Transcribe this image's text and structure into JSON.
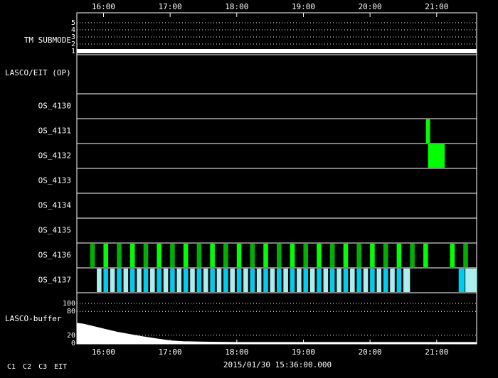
{
  "chart_data": {
    "type": "timeline",
    "xlim": [
      15.6,
      21.6
    ],
    "xticks": [
      {
        "value": 16,
        "label": "16:00"
      },
      {
        "value": 17,
        "label": "17:00"
      },
      {
        "value": 18,
        "label": "18:00"
      },
      {
        "value": 19,
        "label": "19:00"
      },
      {
        "value": 20,
        "label": "20:00"
      },
      {
        "value": 21,
        "label": "21:00"
      }
    ],
    "submode": {
      "label": "TM SUBMODE",
      "ylim": [
        0.5,
        5.5
      ],
      "yticks": [
        1,
        2,
        3,
        4,
        5
      ],
      "x": [
        15.6,
        21.6
      ],
      "values": [
        1,
        1
      ],
      "color": "#ffffff"
    },
    "ops_label": "LASCO/EIT (OP)",
    "rows": [
      {
        "label": "OS_4130"
      },
      {
        "label": "OS_4131",
        "series": [
          {
            "color": "#00ff00",
            "intervals": [
              [
                20.84,
                20.9
              ]
            ]
          }
        ]
      },
      {
        "label": "OS_4132",
        "series": [
          {
            "color": "#00ff00",
            "intervals": [
              [
                20.87,
                21.12
              ]
            ]
          }
        ]
      },
      {
        "label": "OS_4133"
      },
      {
        "label": "OS_4134"
      },
      {
        "label": "OS_4135"
      },
      {
        "label": "OS_4136",
        "series": [
          {
            "color": "#00b000",
            "intervals": [
              [
                15.8,
                15.87
              ],
              [
                16.2,
                16.27
              ],
              [
                16.6,
                16.67
              ],
              [
                17.0,
                17.07
              ],
              [
                17.4,
                17.47
              ],
              [
                17.8,
                17.87
              ],
              [
                18.2,
                18.27
              ],
              [
                18.6,
                18.67
              ],
              [
                19.0,
                19.07
              ],
              [
                19.4,
                19.47
              ],
              [
                19.8,
                19.87
              ],
              [
                20.2,
                20.27
              ],
              [
                20.6,
                20.67
              ],
              [
                21.4,
                21.47
              ]
            ]
          },
          {
            "color": "#00ff00",
            "intervals": [
              [
                16.0,
                16.07
              ],
              [
                16.4,
                16.47
              ],
              [
                16.8,
                16.87
              ],
              [
                17.2,
                17.27
              ],
              [
                17.6,
                17.67
              ],
              [
                18.0,
                18.07
              ],
              [
                18.4,
                18.47
              ],
              [
                18.8,
                18.87
              ],
              [
                19.2,
                19.27
              ],
              [
                19.6,
                19.67
              ],
              [
                20.0,
                20.07
              ],
              [
                20.4,
                20.47
              ],
              [
                20.8,
                20.87
              ],
              [
                21.2,
                21.27
              ]
            ]
          }
        ]
      },
      {
        "label": "OS_4137",
        "series": [
          {
            "color": "#aaeeee",
            "intervals": [
              [
                15.9,
                15.97
              ],
              [
                16.1,
                16.17
              ],
              [
                16.3,
                16.37
              ],
              [
                16.5,
                16.57
              ],
              [
                16.7,
                16.77
              ],
              [
                16.9,
                16.97
              ],
              [
                17.1,
                17.17
              ],
              [
                17.3,
                17.37
              ],
              [
                17.5,
                17.57
              ],
              [
                17.7,
                17.77
              ],
              [
                17.9,
                17.97
              ],
              [
                18.1,
                18.17
              ],
              [
                18.3,
                18.37
              ],
              [
                18.5,
                18.57
              ],
              [
                18.7,
                18.77
              ],
              [
                18.9,
                18.97
              ],
              [
                19.1,
                19.17
              ],
              [
                19.3,
                19.37
              ],
              [
                19.5,
                19.57
              ],
              [
                19.7,
                19.77
              ],
              [
                19.9,
                19.97
              ],
              [
                20.1,
                20.17
              ],
              [
                20.3,
                20.37
              ],
              [
                20.5,
                20.6
              ],
              [
                21.43,
                21.6
              ]
            ]
          },
          {
            "color": "#00ccee",
            "intervals": [
              [
                16.0,
                16.07
              ],
              [
                16.2,
                16.27
              ],
              [
                16.4,
                16.47
              ],
              [
                16.6,
                16.67
              ],
              [
                16.8,
                16.87
              ],
              [
                17.0,
                17.07
              ],
              [
                17.2,
                17.27
              ],
              [
                17.4,
                17.47
              ],
              [
                17.6,
                17.67
              ],
              [
                17.8,
                17.87
              ],
              [
                18.0,
                18.07
              ],
              [
                18.2,
                18.27
              ],
              [
                18.4,
                18.47
              ],
              [
                18.6,
                18.67
              ],
              [
                18.8,
                18.87
              ],
              [
                19.0,
                19.07
              ],
              [
                19.2,
                19.27
              ],
              [
                19.4,
                19.47
              ],
              [
                19.6,
                19.67
              ],
              [
                19.8,
                19.87
              ],
              [
                20.0,
                20.07
              ],
              [
                20.2,
                20.27
              ],
              [
                20.4,
                20.47
              ],
              [
                21.33,
                21.42
              ]
            ]
          }
        ]
      }
    ],
    "buffer": {
      "label": "LASCO-buffer",
      "ylim": [
        0,
        100
      ],
      "yticks": [
        0,
        20,
        80,
        100
      ],
      "color": "#ffffff",
      "x": [
        15.6,
        15.7,
        15.8,
        15.9,
        16.0,
        16.2,
        16.4,
        16.6,
        16.8,
        17.0,
        17.2,
        17.5,
        18.0,
        18.5,
        19.0,
        19.5,
        20.0,
        20.5,
        21.0,
        21.5,
        21.6
      ],
      "values": [
        50,
        48,
        44,
        40,
        36,
        28,
        22,
        16,
        11,
        6,
        4,
        3,
        2,
        2,
        2,
        2,
        2,
        2,
        2,
        2,
        2
      ]
    },
    "date": "2015/01/30 15:36:00.000",
    "legend": [
      {
        "name": "C1",
        "color": "#ff2020"
      },
      {
        "name": "C2",
        "color": "#20ff20"
      },
      {
        "name": "C3",
        "color": "#40e0ff"
      },
      {
        "name": "EIT",
        "color": "#ffffc0"
      }
    ]
  }
}
